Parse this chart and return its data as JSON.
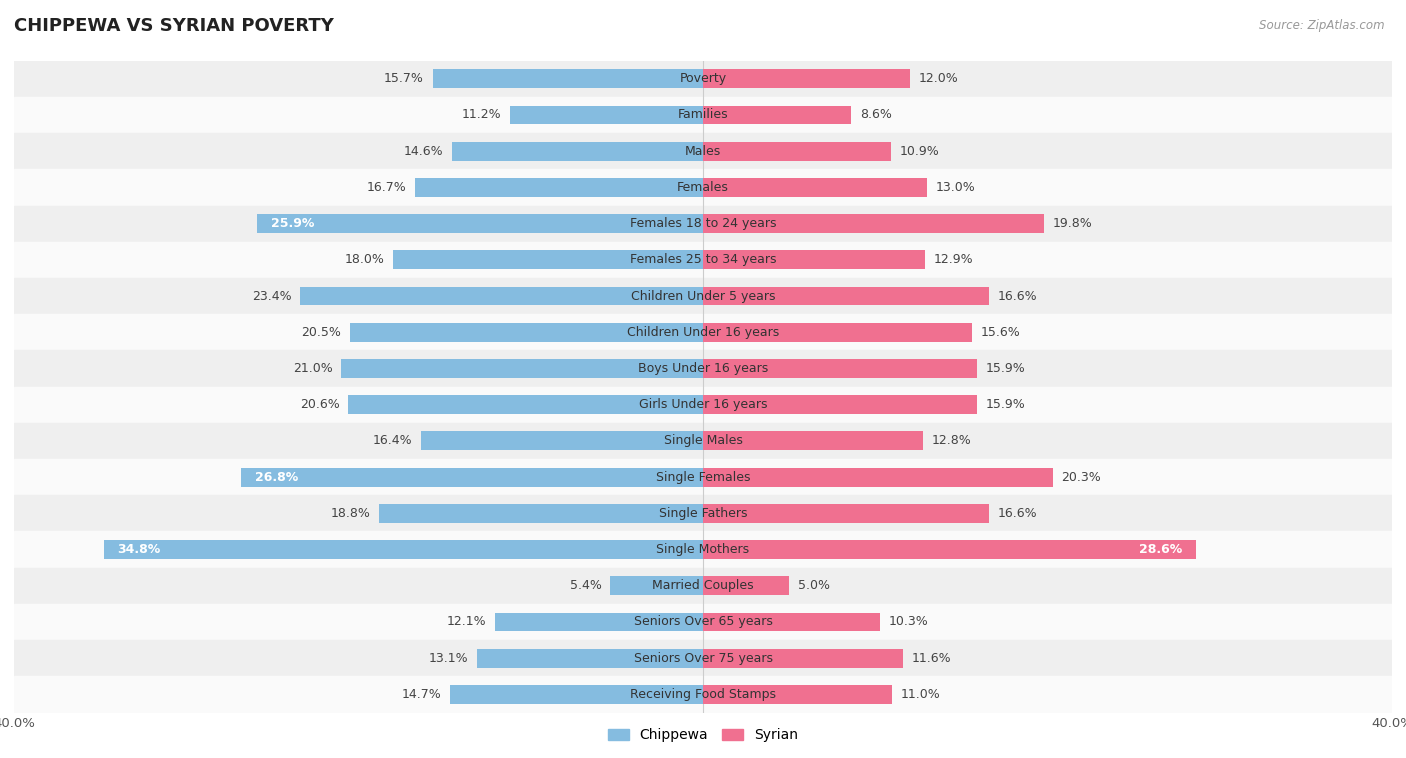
{
  "title": "CHIPPEWA VS SYRIAN POVERTY",
  "source": "Source: ZipAtlas.com",
  "categories": [
    "Poverty",
    "Families",
    "Males",
    "Females",
    "Females 18 to 24 years",
    "Females 25 to 34 years",
    "Children Under 5 years",
    "Children Under 16 years",
    "Boys Under 16 years",
    "Girls Under 16 years",
    "Single Males",
    "Single Females",
    "Single Fathers",
    "Single Mothers",
    "Married Couples",
    "Seniors Over 65 years",
    "Seniors Over 75 years",
    "Receiving Food Stamps"
  ],
  "chippewa": [
    15.7,
    11.2,
    14.6,
    16.7,
    25.9,
    18.0,
    23.4,
    20.5,
    21.0,
    20.6,
    16.4,
    26.8,
    18.8,
    34.8,
    5.4,
    12.1,
    13.1,
    14.7
  ],
  "syrian": [
    12.0,
    8.6,
    10.9,
    13.0,
    19.8,
    12.9,
    16.6,
    15.6,
    15.9,
    15.9,
    12.8,
    20.3,
    16.6,
    28.6,
    5.0,
    10.3,
    11.6,
    11.0
  ],
  "chippewa_color": "#85BCE0",
  "syrian_color": "#F07090",
  "row_bg_odd": "#EFEFEF",
  "row_bg_even": "#FAFAFA",
  "axis_limit": 40.0,
  "bar_height": 0.52,
  "label_fontsize": 9.0,
  "category_fontsize": 9.0,
  "title_fontsize": 13,
  "legend_labels": [
    "Chippewa",
    "Syrian"
  ],
  "white_label_threshold_chip": [
    4,
    11,
    13
  ],
  "white_label_threshold_syr": [
    13
  ]
}
